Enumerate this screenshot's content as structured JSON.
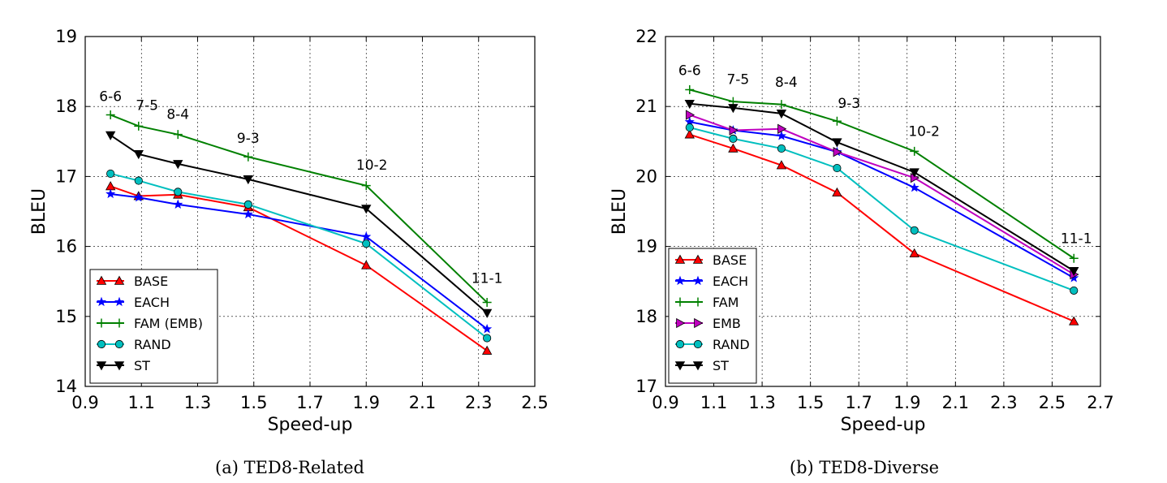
{
  "chart_data": [
    {
      "type": "line",
      "caption": "(a) TED8-Related",
      "xlabel": "Speed-up",
      "ylabel": "BLEU",
      "xlim": [
        0.9,
        2.5
      ],
      "ylim": [
        14,
        19
      ],
      "xticks": [
        "0.9",
        "1.1",
        "1.3",
        "1.5",
        "1.7",
        "1.9",
        "2.1",
        "2.3",
        "2.5"
      ],
      "yticks": [
        "14",
        "15",
        "16",
        "17",
        "18",
        "19"
      ],
      "grid": true,
      "legend_position": "lower-left",
      "annotations": [
        {
          "text": "6-6",
          "x": 0.99,
          "y": 18.08
        },
        {
          "text": "7-5",
          "x": 1.12,
          "y": 17.95
        },
        {
          "text": "8-4",
          "x": 1.23,
          "y": 17.82
        },
        {
          "text": "9-3",
          "x": 1.48,
          "y": 17.48
        },
        {
          "text": "10-2",
          "x": 1.92,
          "y": 17.1
        },
        {
          "text": "11-1",
          "x": 2.33,
          "y": 15.48
        }
      ],
      "series": [
        {
          "name": "BASE",
          "color": "#ff0000",
          "marker": "triangle-up",
          "x": [
            0.99,
            1.09,
            1.23,
            1.48,
            1.9,
            2.33
          ],
          "y": [
            16.86,
            16.72,
            16.74,
            16.56,
            15.73,
            14.51
          ]
        },
        {
          "name": "EACH",
          "color": "#0000ff",
          "marker": "star",
          "x": [
            0.99,
            1.09,
            1.23,
            1.48,
            1.9,
            2.33
          ],
          "y": [
            16.75,
            16.7,
            16.6,
            16.46,
            16.14,
            14.82
          ]
        },
        {
          "name": "FAM (EMB)",
          "color": "#008000",
          "marker": "plus",
          "x": [
            0.99,
            1.09,
            1.23,
            1.48,
            1.9,
            2.33
          ],
          "y": [
            17.88,
            17.72,
            17.6,
            17.28,
            16.87,
            15.2
          ]
        },
        {
          "name": "RAND",
          "color": "#00bfbf",
          "marker": "circle",
          "x": [
            0.99,
            1.09,
            1.23,
            1.48,
            1.9,
            2.33
          ],
          "y": [
            17.04,
            16.94,
            16.78,
            16.6,
            16.04,
            14.69
          ]
        },
        {
          "name": "ST",
          "color": "#000000",
          "marker": "triangle-down",
          "x": [
            0.99,
            1.09,
            1.23,
            1.48,
            1.9,
            2.33
          ],
          "y": [
            17.59,
            17.32,
            17.18,
            16.96,
            16.54,
            15.05
          ]
        }
      ]
    },
    {
      "type": "line",
      "caption": "(b) TED8-Diverse",
      "xlabel": "Speed-up",
      "ylabel": "BLEU",
      "xlim": [
        0.9,
        2.7
      ],
      "ylim": [
        17,
        22
      ],
      "xticks": [
        "0.9",
        "1.1",
        "1.3",
        "1.5",
        "1.7",
        "1.9",
        "2.1",
        "2.3",
        "2.5",
        "2.7"
      ],
      "yticks": [
        "17",
        "18",
        "19",
        "20",
        "21",
        "22"
      ],
      "grid": true,
      "legend_position": "lower-left",
      "annotations": [
        {
          "text": "6-6",
          "x": 1.0,
          "y": 21.45
        },
        {
          "text": "7-5",
          "x": 1.2,
          "y": 21.32
        },
        {
          "text": "8-4",
          "x": 1.4,
          "y": 21.28
        },
        {
          "text": "9-3",
          "x": 1.66,
          "y": 20.98
        },
        {
          "text": "10-2",
          "x": 1.97,
          "y": 20.58
        },
        {
          "text": "11-1",
          "x": 2.6,
          "y": 19.05
        }
      ],
      "series": [
        {
          "name": "BASE",
          "color": "#ff0000",
          "marker": "triangle-up",
          "x": [
            1.0,
            1.18,
            1.38,
            1.61,
            1.93,
            2.59
          ],
          "y": [
            20.6,
            20.4,
            20.16,
            19.77,
            18.9,
            17.93
          ]
        },
        {
          "name": "EACH",
          "color": "#0000ff",
          "marker": "star",
          "x": [
            1.0,
            1.18,
            1.38,
            1.61,
            1.93,
            2.59
          ],
          "y": [
            20.78,
            20.66,
            20.58,
            20.35,
            19.84,
            18.55
          ]
        },
        {
          "name": "FAM",
          "color": "#008000",
          "marker": "plus",
          "x": [
            1.0,
            1.18,
            1.38,
            1.61,
            1.93,
            2.59
          ],
          "y": [
            21.24,
            21.07,
            21.03,
            20.79,
            20.36,
            18.83
          ]
        },
        {
          "name": "EMB",
          "color": "#bf00bf",
          "marker": "triangle-right",
          "x": [
            1.0,
            1.18,
            1.38,
            1.61,
            1.93,
            2.59
          ],
          "y": [
            20.88,
            20.66,
            20.68,
            20.35,
            19.98,
            18.6
          ]
        },
        {
          "name": "RAND",
          "color": "#00bfbf",
          "marker": "circle",
          "x": [
            1.0,
            1.18,
            1.38,
            1.61,
            1.93,
            2.59
          ],
          "y": [
            20.7,
            20.54,
            20.4,
            20.12,
            19.23,
            18.37
          ]
        },
        {
          "name": "ST",
          "color": "#000000",
          "marker": "triangle-down",
          "x": [
            1.0,
            1.18,
            1.38,
            1.61,
            1.93,
            2.59
          ],
          "y": [
            21.04,
            20.98,
            20.9,
            20.49,
            20.06,
            18.65
          ]
        }
      ]
    }
  ]
}
